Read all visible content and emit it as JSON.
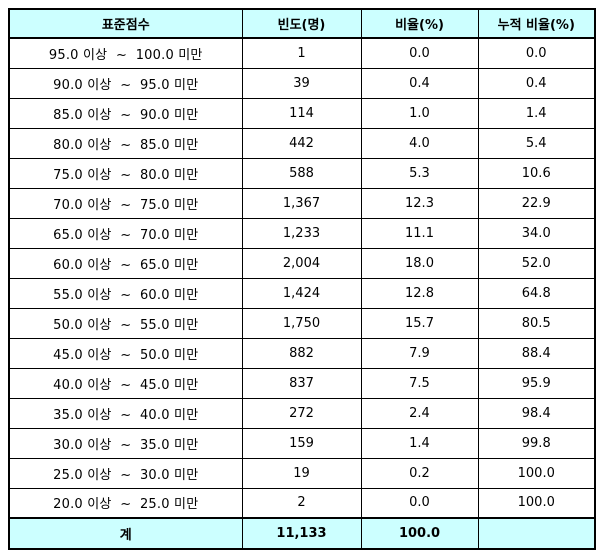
{
  "table": {
    "headers": [
      "표준점수",
      "빈도(명)",
      "비율(%)",
      "누적 비율(%)"
    ],
    "rows": [
      {
        "range": "95.0 이상  ~  100.0 미만",
        "freq": "1",
        "ratio": "0.0",
        "cum": "0.0"
      },
      {
        "range": "90.0 이상  ~  95.0 미만",
        "freq": "39",
        "ratio": "0.4",
        "cum": "0.4"
      },
      {
        "range": "85.0 이상  ~  90.0 미만",
        "freq": "114",
        "ratio": "1.0",
        "cum": "1.4"
      },
      {
        "range": "80.0 이상  ~  85.0 미만",
        "freq": "442",
        "ratio": "4.0",
        "cum": "5.4"
      },
      {
        "range": "75.0 이상  ~  80.0 미만",
        "freq": "588",
        "ratio": "5.3",
        "cum": "10.6"
      },
      {
        "range": "70.0 이상  ~  75.0 미만",
        "freq": "1,367",
        "ratio": "12.3",
        "cum": "22.9"
      },
      {
        "range": "65.0 이상  ~  70.0 미만",
        "freq": "1,233",
        "ratio": "11.1",
        "cum": "34.0"
      },
      {
        "range": "60.0 이상  ~  65.0 미만",
        "freq": "2,004",
        "ratio": "18.0",
        "cum": "52.0"
      },
      {
        "range": "55.0 이상  ~  60.0 미만",
        "freq": "1,424",
        "ratio": "12.8",
        "cum": "64.8"
      },
      {
        "range": "50.0 이상  ~  55.0 미만",
        "freq": "1,750",
        "ratio": "15.7",
        "cum": "80.5"
      },
      {
        "range": "45.0 이상  ~  50.0 미만",
        "freq": "882",
        "ratio": "7.9",
        "cum": "88.4"
      },
      {
        "range": "40.0 이상  ~  45.0 미만",
        "freq": "837",
        "ratio": "7.5",
        "cum": "95.9"
      },
      {
        "range": "35.0 이상  ~  40.0 미만",
        "freq": "272",
        "ratio": "2.4",
        "cum": "98.4"
      },
      {
        "range": "30.0 이상  ~  35.0 미만",
        "freq": "159",
        "ratio": "1.4",
        "cum": "99.8"
      },
      {
        "range": "25.0 이상  ~  30.0 미만",
        "freq": "19",
        "ratio": "0.2",
        "cum": "100.0"
      },
      {
        "range": "20.0 이상  ~  25.0 미만",
        "freq": "2",
        "ratio": "0.0",
        "cum": "100.0"
      }
    ],
    "total": {
      "label": "계",
      "freq": "11,133",
      "ratio": "100.0",
      "cum": ""
    },
    "colors": {
      "header_bg": "#ccffff",
      "border": "#000000"
    }
  }
}
